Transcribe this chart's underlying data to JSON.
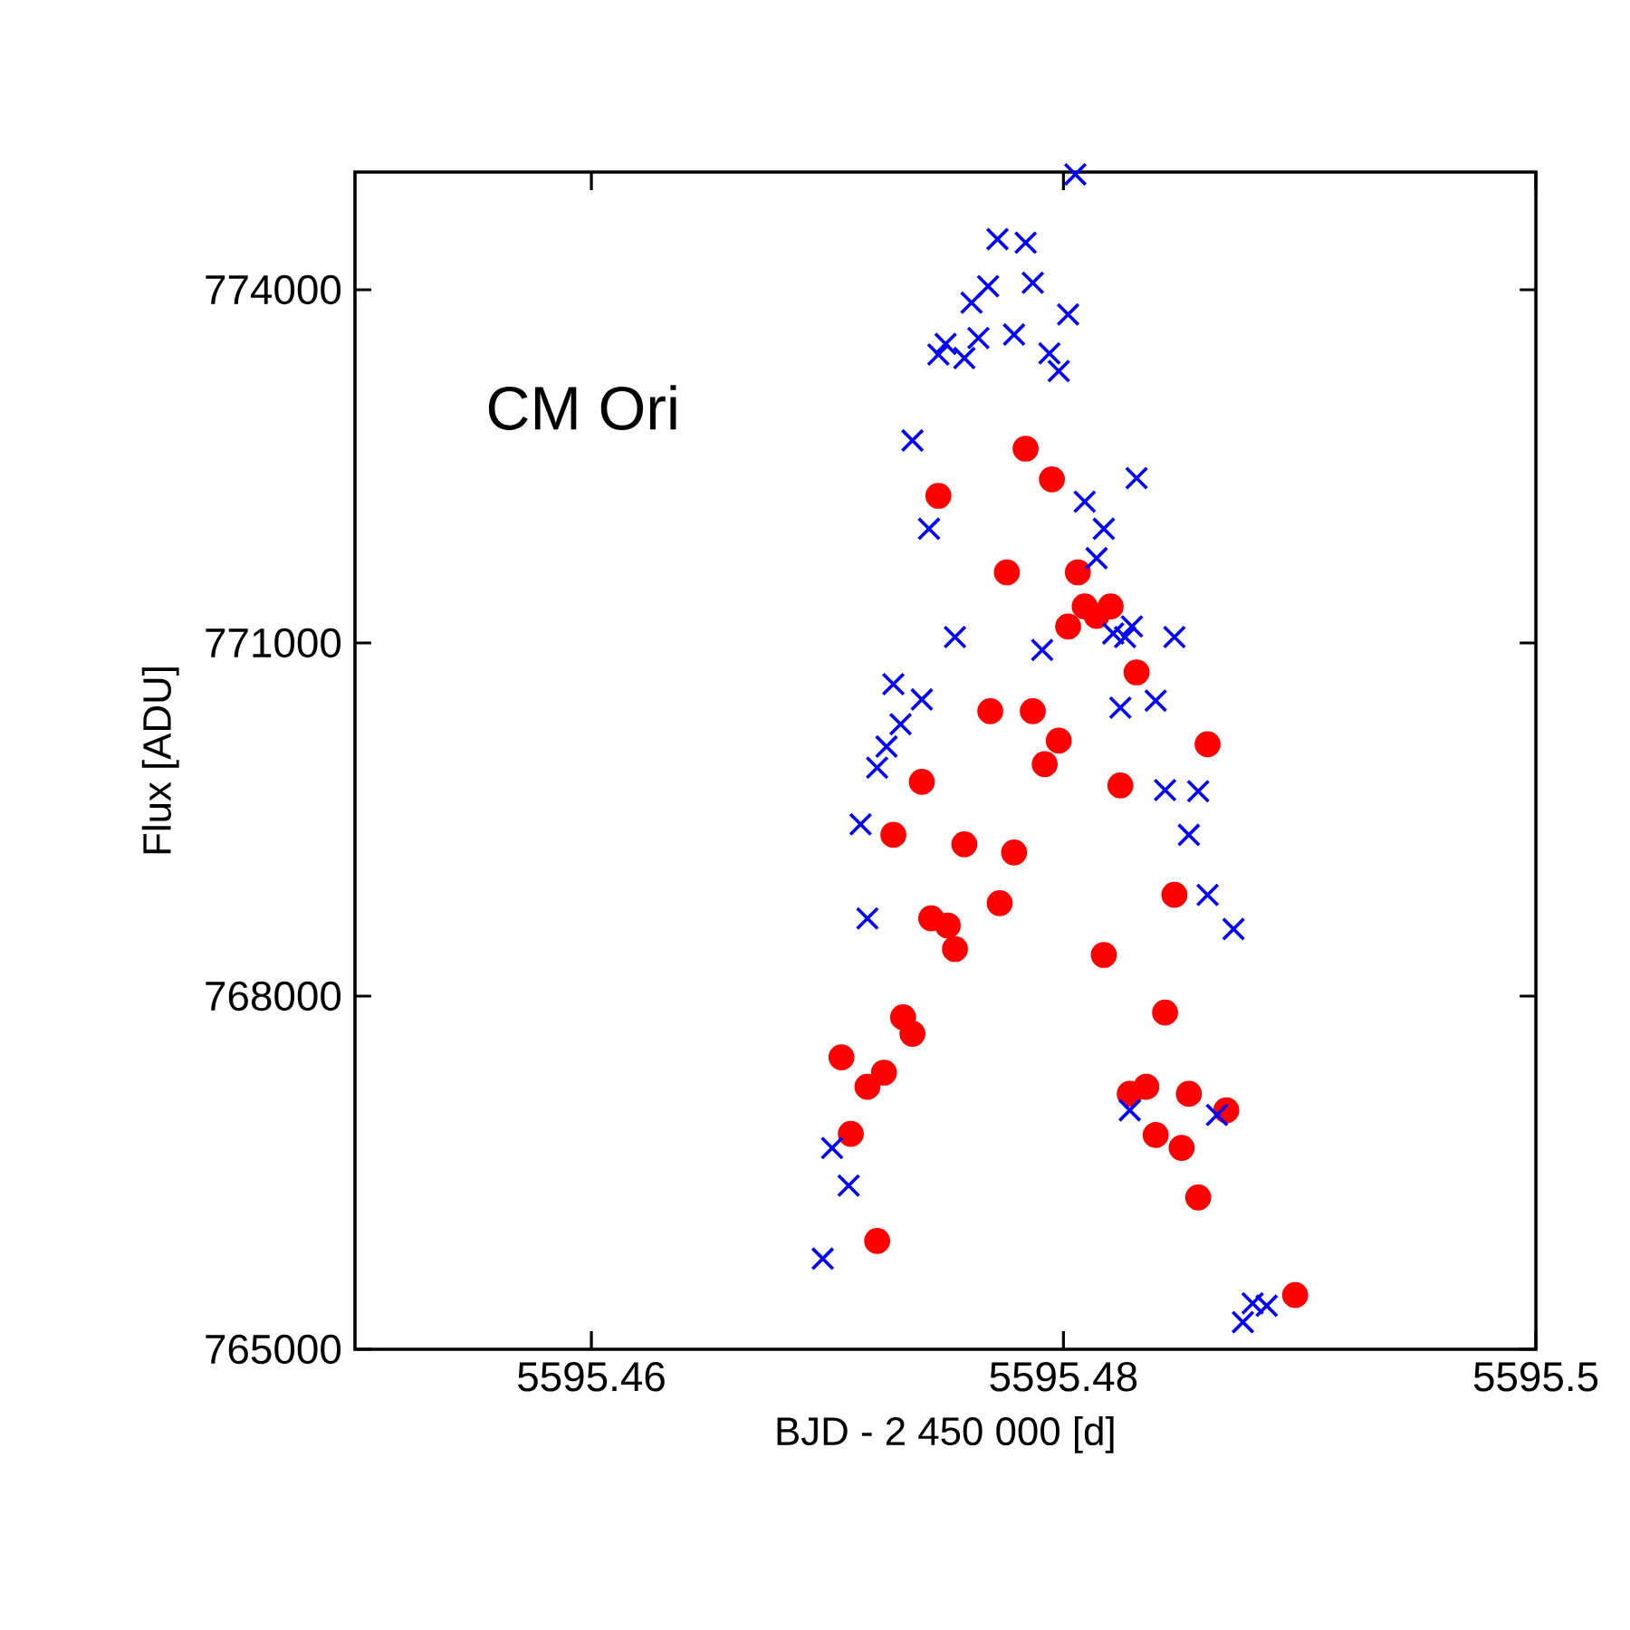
{
  "chart_data": {
    "type": "scatter",
    "xlabel": "BJD - 2 450 000  [d]",
    "ylabel": "Flux [ADU]",
    "annotations": [
      "CM Ori"
    ],
    "xlim": [
      5595.45,
      5595.5
    ],
    "ylim": [
      765000,
      775000
    ],
    "xticks": [
      5595.46,
      5595.48,
      5595.5
    ],
    "yticks": [
      765000,
      768000,
      771000,
      774000
    ],
    "grid": false,
    "series": [
      {
        "color": "#0000ff",
        "marker": "cross",
        "x": [
          5595.4805,
          5595.4772,
          5595.4784,
          5595.4768,
          5595.4787,
          5595.4761,
          5595.4802,
          5595.4747,
          5595.475,
          5595.4764,
          5595.4779,
          5595.4794,
          5595.4798,
          5595.4758,
          5595.4736,
          5595.4809,
          5595.4831,
          5595.4743,
          5595.4817,
          5595.4814,
          5595.4754,
          5595.4791,
          5595.4821,
          5595.4829,
          5595.4826,
          5595.4847,
          5595.4824,
          5595.4839,
          5595.474,
          5595.4728,
          5595.4731,
          5595.4725,
          5595.4721,
          5595.4843,
          5595.4857,
          5595.4714,
          5595.4853,
          5595.4717,
          5595.4861,
          5595.4872,
          5595.4828,
          5595.4865,
          5595.4702,
          5595.4709,
          5595.4698,
          5595.4876,
          5595.488,
          5595.4886
        ],
        "values": [
          774980,
          774430,
          774400,
          774030,
          774060,
          773890,
          773790,
          773450,
          773540,
          773590,
          773620,
          773460,
          773310,
          773420,
          772720,
          772200,
          772400,
          771970,
          771970,
          771720,
          771050,
          770940,
          771080,
          771140,
          771050,
          771050,
          770450,
          770510,
          770520,
          770650,
          770310,
          770120,
          769940,
          769750,
          769740,
          769460,
          769370,
          768660,
          768860,
          768570,
          767030,
          766990,
          766710,
          766390,
          765770,
          765230,
          765390,
          765370
        ]
      },
      {
        "color": "#ff0000",
        "marker": "circle",
        "x": [
          5595.4784,
          5595.4795,
          5595.4747,
          5595.4776,
          5595.4806,
          5595.4809,
          5595.4814,
          5595.482,
          5595.4802,
          5595.4831,
          5595.4769,
          5595.4787,
          5595.4861,
          5595.4798,
          5595.4792,
          5595.474,
          5595.4824,
          5595.4728,
          5595.4758,
          5595.4779,
          5595.4847,
          5595.4773,
          5595.4744,
          5595.4751,
          5595.4754,
          5595.4817,
          5595.4732,
          5595.4736,
          5595.4843,
          5595.4706,
          5595.4724,
          5595.4717,
          5595.4835,
          5595.4828,
          5595.4853,
          5595.4869,
          5595.471,
          5595.4839,
          5595.485,
          5595.4857,
          5595.4721,
          5595.4898
        ],
        "values": [
          772650,
          772390,
          772250,
          771600,
          771600,
          771310,
          771230,
          771310,
          771140,
          770750,
          770420,
          770420,
          770140,
          770170,
          769970,
          769820,
          769790,
          769370,
          769290,
          769220,
          768860,
          768790,
          768660,
          768600,
          768400,
          768350,
          767820,
          767680,
          767860,
          767480,
          767350,
          767230,
          767230,
          767170,
          767170,
          767030,
          766830,
          766820,
          766710,
          766290,
          765920,
          765460
        ]
      }
    ]
  }
}
